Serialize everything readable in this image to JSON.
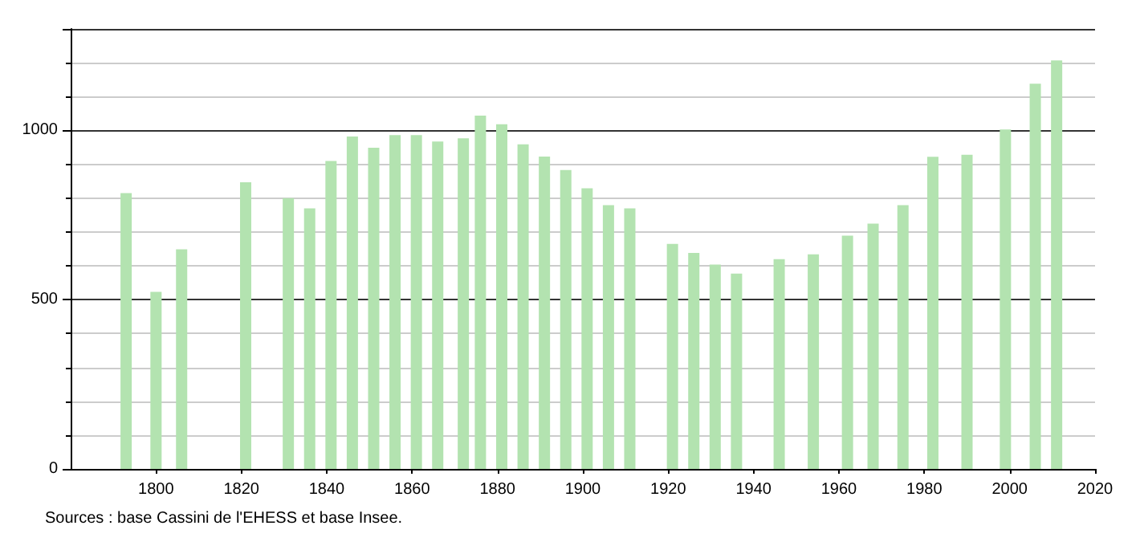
{
  "chart_data": {
    "type": "bar",
    "x": [
      1793,
      1800,
      1806,
      1821,
      1831,
      1836,
      1841,
      1846,
      1851,
      1856,
      1861,
      1866,
      1872,
      1876,
      1881,
      1886,
      1891,
      1896,
      1901,
      1906,
      1911,
      1921,
      1926,
      1931,
      1936,
      1946,
      1954,
      1962,
      1968,
      1975,
      1982,
      1990,
      1999,
      2006,
      2011
    ],
    "values": [
      815,
      523,
      649,
      847,
      800,
      770,
      910,
      982,
      949,
      986,
      986,
      967,
      977,
      1044,
      1018,
      959,
      923,
      883,
      829,
      779,
      770,
      665,
      638,
      604,
      577,
      620,
      634,
      689,
      725,
      779,
      922,
      928,
      1003,
      1138,
      1207
    ],
    "color": "#b3e3b0",
    "xlim": [
      1780,
      2020
    ],
    "xticks": [
      1800,
      1820,
      1840,
      1860,
      1880,
      1900,
      1920,
      1940,
      1960,
      1980,
      2000,
      2020
    ],
    "ylim": [
      0,
      1300
    ],
    "yticks": [
      0,
      500,
      1000
    ],
    "grid": "y",
    "annotations": [
      "Sources : base Cassini de l'EHESS et base Insee."
    ]
  }
}
